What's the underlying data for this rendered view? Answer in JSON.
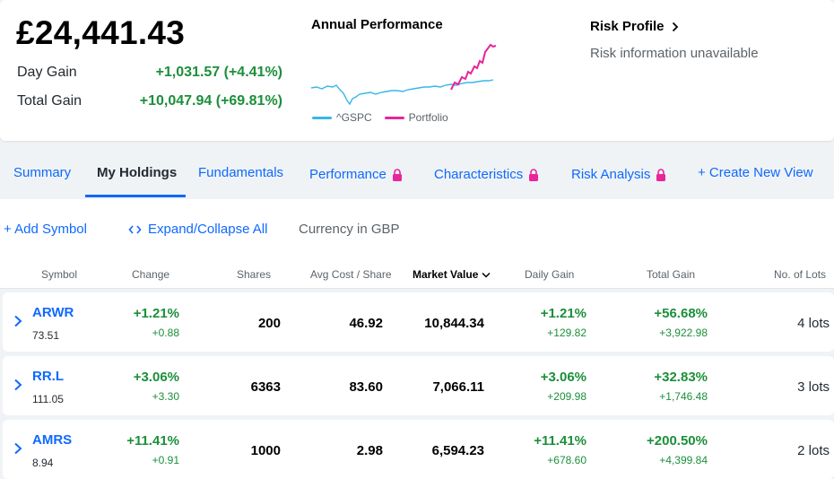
{
  "summary": {
    "total_value": "£24,441.43",
    "day_gain_label": "Day Gain",
    "day_gain_value": "+1,031.57 (+4.41%)",
    "total_gain_label": "Total Gain",
    "total_gain_value": "+10,047.94 (+69.81%)"
  },
  "performance": {
    "title": "Annual Performance",
    "legend": [
      {
        "name": "^GSPC",
        "color": "#38b6e8"
      },
      {
        "name": "Portfolio",
        "color": "#e8259a"
      }
    ]
  },
  "risk": {
    "title": "Risk Profile",
    "subtitle": "Risk information unavailable"
  },
  "tabs": [
    {
      "label": "Summary",
      "active": false,
      "locked": false
    },
    {
      "label": "My Holdings",
      "active": true,
      "locked": false
    },
    {
      "label": "Fundamentals",
      "active": false,
      "locked": false
    },
    {
      "label": "Performance",
      "active": false,
      "locked": true
    },
    {
      "label": "Characteristics",
      "active": false,
      "locked": true
    },
    {
      "label": "Risk Analysis",
      "active": false,
      "locked": true
    },
    {
      "label": "+ Create New View",
      "active": false,
      "locked": false
    }
  ],
  "toolbar": {
    "add_symbol": "+ Add Symbol",
    "expand_collapse": "Expand/Collapse All",
    "currency": "Currency in GBP"
  },
  "columns": {
    "symbol": "Symbol",
    "change": "Change",
    "shares": "Shares",
    "avg_cost": "Avg Cost / Share",
    "market_value": "Market Value",
    "daily_gain": "Daily Gain",
    "total_gain": "Total Gain",
    "lots": "No. of Lots"
  },
  "holdings": [
    {
      "symbol": "ARWR",
      "price": "73.51",
      "change_pct": "+1.21%",
      "change_abs": "+0.88",
      "shares": "200",
      "avg_cost": "46.92",
      "market_value": "10,844.34",
      "daily_gain_pct": "+1.21%",
      "daily_gain_abs": "+129.82",
      "total_gain_pct": "+56.68%",
      "total_gain_abs": "+3,922.98",
      "lots": "4 lots"
    },
    {
      "symbol": "RR.L",
      "price": "111.05",
      "change_pct": "+3.06%",
      "change_abs": "+3.30",
      "shares": "6363",
      "avg_cost": "83.60",
      "market_value": "7,066.11",
      "daily_gain_pct": "+3.06%",
      "daily_gain_abs": "+209.98",
      "total_gain_pct": "+32.83%",
      "total_gain_abs": "+1,746.48",
      "lots": "3 lots"
    },
    {
      "symbol": "AMRS",
      "price": "8.94",
      "change_pct": "+11.41%",
      "change_abs": "+0.91",
      "shares": "1000",
      "avg_cost": "2.98",
      "market_value": "6,594.23",
      "daily_gain_pct": "+11.41%",
      "daily_gain_abs": "+678.60",
      "total_gain_pct": "+200.50%",
      "total_gain_abs": "+4,399.84",
      "lots": "2 lots"
    }
  ],
  "colors": {
    "accent": "#0f69ff",
    "positive": "#1b8f3a",
    "benchmark_line": "#38b6e8",
    "portfolio_line": "#e8259a"
  }
}
